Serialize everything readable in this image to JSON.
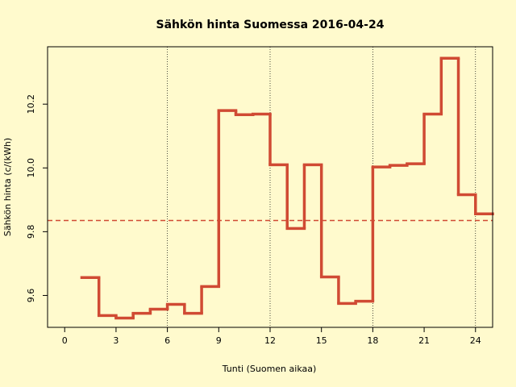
{
  "chart_data": {
    "type": "step",
    "title": "Sähkön hinta Suomessa 2016-04-24",
    "x_label": "Tunti (Suomen aikaa)",
    "y_label": "Sähkön hinta (c/(kWh)",
    "x": [
      1,
      2,
      3,
      4,
      5,
      6,
      7,
      8,
      9,
      10,
      11,
      12,
      13,
      14,
      15,
      16,
      17,
      18,
      19,
      20,
      21,
      22,
      23,
      24
    ],
    "values": [
      9.656,
      9.537,
      9.529,
      9.544,
      9.557,
      9.572,
      9.544,
      9.628,
      10.18,
      10.167,
      10.169,
      10.01,
      9.81,
      10.01,
      9.658,
      9.575,
      9.582,
      10.003,
      10.008,
      10.013,
      10.169,
      10.344,
      9.916,
      9.856
    ],
    "color": "#d04a33",
    "reference_line": 9.835,
    "vlines": [
      6,
      12,
      18,
      24
    ],
    "xlim": [
      -1,
      25
    ],
    "ylim": [
      9.5,
      10.38
    ],
    "xticks": [
      0,
      3,
      6,
      9,
      12,
      15,
      18,
      21,
      24
    ],
    "yticks": [
      9.6,
      9.8,
      {
        "value": 10,
        "label": "10.0"
      },
      10.2
    ]
  }
}
